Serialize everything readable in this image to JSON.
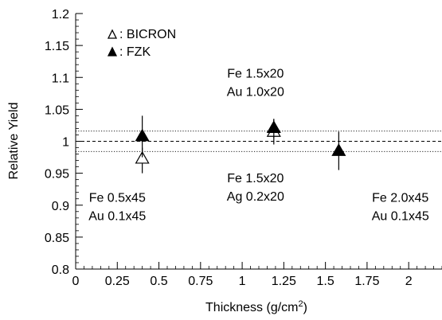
{
  "chart_data": {
    "type": "scatter",
    "xlabel": "Thickness (g/cm",
    "xlabel_sup": "2",
    "xlabel_close": ")",
    "ylabel": "Relative Yield",
    "xlim": [
      0,
      2.2
    ],
    "ylim": [
      0.8,
      1.2
    ],
    "x_ticks": [
      0,
      0.25,
      0.5,
      0.75,
      1,
      1.25,
      1.5,
      1.75,
      2
    ],
    "x_tick_labels": [
      "0",
      "0.25",
      "0.5",
      "0.75",
      "1",
      "1.25",
      "1.5",
      "1.75",
      "2"
    ],
    "y_ticks": [
      0.8,
      0.85,
      0.9,
      0.95,
      1.0,
      1.05,
      1.1,
      1.15,
      1.2
    ],
    "y_tick_labels": [
      "0.8",
      "0.85",
      "0.9",
      "0.95",
      "1",
      "1.05",
      "1.1",
      "1.15",
      "1.2"
    ],
    "grid": false,
    "legend_position": "top-left",
    "series": [
      {
        "name": "BICRON",
        "legend_label": ": BICRON",
        "marker": "open-triangle",
        "points": [
          {
            "x": 0.4,
            "y": 0.972,
            "err_low": 0.95,
            "err_high": 0.99
          },
          {
            "x": 1.19,
            "y": 1.014,
            "err_low": 0.995,
            "err_high": 1.035
          }
        ]
      },
      {
        "name": "FZK",
        "legend_label": ": FZK",
        "marker": "filled-triangle",
        "points": [
          {
            "x": 0.4,
            "y": 1.007,
            "err_low": 0.975,
            "err_high": 1.04
          },
          {
            "x": 1.19,
            "y": 1.02,
            "err_low": 1.005,
            "err_high": 1.035
          },
          {
            "x": 1.58,
            "y": 0.984,
            "err_low": 0.955,
            "err_high": 1.015
          }
        ]
      }
    ],
    "reference_lines": [
      {
        "y": 1.0,
        "style": "dashed"
      },
      {
        "y": 1.016,
        "style": "dotted"
      },
      {
        "y": 0.984,
        "style": "dotted"
      }
    ],
    "annotations": [
      {
        "lines": [
          "Fe 0.5x45",
          "Au 0.1x45"
        ],
        "x": 0.25,
        "y": 0.905
      },
      {
        "lines": [
          "Fe 1.5x20",
          "Au 1.0x20"
        ],
        "x": 1.08,
        "y": 1.1
      },
      {
        "lines": [
          "Fe 1.5x20",
          "Ag 0.2x20"
        ],
        "x": 1.08,
        "y": 0.936
      },
      {
        "lines": [
          "Fe 2.0x45",
          "Au 0.1x45"
        ],
        "x": 1.95,
        "y": 0.905
      }
    ]
  }
}
